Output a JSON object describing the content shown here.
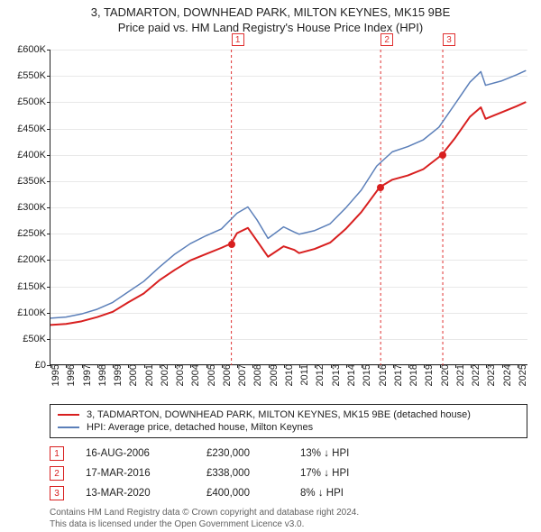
{
  "title": {
    "line1": "3, TADMARTON, DOWNHEAD PARK, MILTON KEYNES, MK15 9BE",
    "line2": "Price paid vs. HM Land Registry's House Price Index (HPI)"
  },
  "chart": {
    "type": "line",
    "background_color": "#ffffff",
    "grid_color": "#e8e8e8",
    "axis_color": "#222222",
    "marker_line_color": "#e03030",
    "marker_line_dash": "3,3",
    "xlim": [
      1995,
      2025.7
    ],
    "ylim": [
      0,
      600000
    ],
    "ytick_step": 50000,
    "yticks": [
      {
        "v": 0,
        "label": "£0"
      },
      {
        "v": 50000,
        "label": "£50K"
      },
      {
        "v": 100000,
        "label": "£100K"
      },
      {
        "v": 150000,
        "label": "£150K"
      },
      {
        "v": 200000,
        "label": "£200K"
      },
      {
        "v": 250000,
        "label": "£250K"
      },
      {
        "v": 300000,
        "label": "£300K"
      },
      {
        "v": 350000,
        "label": "£350K"
      },
      {
        "v": 400000,
        "label": "£400K"
      },
      {
        "v": 450000,
        "label": "£450K"
      },
      {
        "v": 500000,
        "label": "£500K"
      },
      {
        "v": 550000,
        "label": "£550K"
      },
      {
        "v": 600000,
        "label": "£600K"
      }
    ],
    "xticks": [
      1995,
      1996,
      1997,
      1998,
      1999,
      2000,
      2001,
      2002,
      2003,
      2004,
      2005,
      2006,
      2007,
      2008,
      2009,
      2010,
      2011,
      2012,
      2013,
      2014,
      2015,
      2016,
      2017,
      2018,
      2019,
      2020,
      2021,
      2022,
      2023,
      2024,
      2025
    ],
    "series": [
      {
        "key": "property",
        "color": "#d81f1f",
        "line_width": 2,
        "points": [
          [
            1995,
            75000
          ],
          [
            1996,
            77000
          ],
          [
            1997,
            82000
          ],
          [
            1998,
            90000
          ],
          [
            1999,
            100000
          ],
          [
            2000,
            118000
          ],
          [
            2001,
            135000
          ],
          [
            2002,
            160000
          ],
          [
            2003,
            180000
          ],
          [
            2004,
            198000
          ],
          [
            2005,
            210000
          ],
          [
            2006,
            222000
          ],
          [
            2006.62,
            230000
          ],
          [
            2007,
            250000
          ],
          [
            2007.7,
            260000
          ],
          [
            2008.3,
            235000
          ],
          [
            2009,
            205000
          ],
          [
            2010,
            225000
          ],
          [
            2010.7,
            218000
          ],
          [
            2011,
            212000
          ],
          [
            2012,
            220000
          ],
          [
            2013,
            232000
          ],
          [
            2014,
            258000
          ],
          [
            2015,
            290000
          ],
          [
            2016,
            330000
          ],
          [
            2016.21,
            338000
          ],
          [
            2017,
            352000
          ],
          [
            2018,
            360000
          ],
          [
            2019,
            372000
          ],
          [
            2020,
            395000
          ],
          [
            2020.2,
            400000
          ],
          [
            2021,
            430000
          ],
          [
            2022,
            472000
          ],
          [
            2022.7,
            490000
          ],
          [
            2023,
            468000
          ],
          [
            2024,
            480000
          ],
          [
            2025,
            492000
          ],
          [
            2025.6,
            500000
          ]
        ]
      },
      {
        "key": "hpi",
        "color": "#5b7fb9",
        "line_width": 1.5,
        "points": [
          [
            1995,
            88000
          ],
          [
            1996,
            90000
          ],
          [
            1997,
            96000
          ],
          [
            1998,
            105000
          ],
          [
            1999,
            118000
          ],
          [
            2000,
            138000
          ],
          [
            2001,
            158000
          ],
          [
            2002,
            185000
          ],
          [
            2003,
            210000
          ],
          [
            2004,
            230000
          ],
          [
            2005,
            245000
          ],
          [
            2006,
            258000
          ],
          [
            2007,
            288000
          ],
          [
            2007.7,
            300000
          ],
          [
            2008.3,
            275000
          ],
          [
            2009,
            240000
          ],
          [
            2010,
            262000
          ],
          [
            2010.7,
            252000
          ],
          [
            2011,
            248000
          ],
          [
            2012,
            255000
          ],
          [
            2013,
            268000
          ],
          [
            2014,
            298000
          ],
          [
            2015,
            332000
          ],
          [
            2016,
            378000
          ],
          [
            2017,
            405000
          ],
          [
            2018,
            415000
          ],
          [
            2019,
            428000
          ],
          [
            2020,
            452000
          ],
          [
            2021,
            495000
          ],
          [
            2022,
            538000
          ],
          [
            2022.7,
            558000
          ],
          [
            2023,
            532000
          ],
          [
            2024,
            540000
          ],
          [
            2025,
            552000
          ],
          [
            2025.6,
            560000
          ]
        ]
      }
    ],
    "sale_markers": [
      {
        "n": "1",
        "x": 2006.62,
        "y": 230000
      },
      {
        "n": "2",
        "x": 2016.21,
        "y": 338000
      },
      {
        "n": "3",
        "x": 2020.2,
        "y": 400000
      }
    ]
  },
  "legend": {
    "items": [
      {
        "color": "#d81f1f",
        "label": "3, TADMARTON, DOWNHEAD PARK, MILTON KEYNES, MK15 9BE (detached house)"
      },
      {
        "color": "#5b7fb9",
        "label": "HPI: Average price, detached house, Milton Keynes"
      }
    ]
  },
  "sales": [
    {
      "n": "1",
      "date": "16-AUG-2006",
      "price": "£230,000",
      "diff": "13% ↓ HPI",
      "marker_color": "#d81f1f"
    },
    {
      "n": "2",
      "date": "17-MAR-2016",
      "price": "£338,000",
      "diff": "17% ↓ HPI",
      "marker_color": "#d81f1f"
    },
    {
      "n": "3",
      "date": "13-MAR-2020",
      "price": "£400,000",
      "diff": "8% ↓ HPI",
      "marker_color": "#d81f1f"
    }
  ],
  "footer": {
    "line1": "Contains HM Land Registry data © Crown copyright and database right 2024.",
    "line2": "This data is licensed under the Open Government Licence v3.0."
  }
}
